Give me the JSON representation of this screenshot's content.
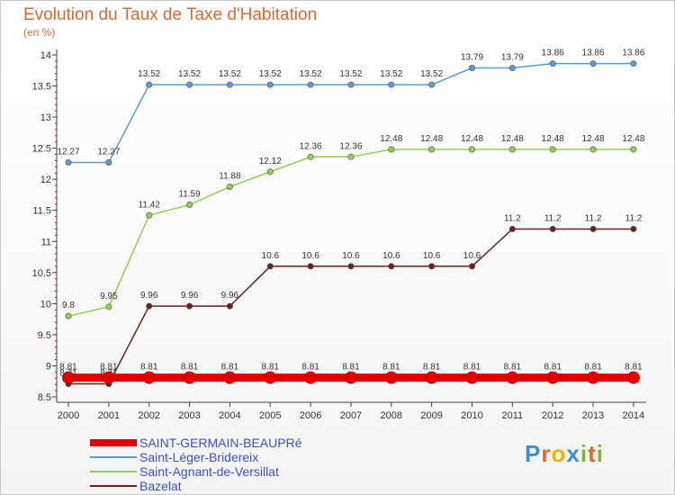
{
  "title": "Evolution du Taux de Taxe d'Habitation",
  "unit_label": "(en %)",
  "logo": {
    "letters": [
      {
        "t": "P",
        "color": "#3a8fd0"
      },
      {
        "t": "r",
        "color": "#e0662c"
      },
      {
        "t": "o",
        "color": "#f0b400"
      },
      {
        "t": "x",
        "color": "#3a8fd0"
      },
      {
        "t": "i",
        "color": "#7ab82e"
      },
      {
        "t": "t",
        "color": "#e0662c"
      },
      {
        "t": "i",
        "color": "#7ab82e"
      }
    ]
  },
  "chart_data": {
    "type": "line",
    "title": "Evolution du Taux de Taxe d'Habitation",
    "ylabel": "(en %)",
    "xlabel": "",
    "x": [
      "2000",
      "2001",
      "2002",
      "2003",
      "2004",
      "2005",
      "2006",
      "2007",
      "2008",
      "2009",
      "2010",
      "2011",
      "2012",
      "2013",
      "2014"
    ],
    "ylim": [
      8.5,
      14
    ],
    "yticks": [
      "8.5",
      "9",
      "9.5",
      "10",
      "10.5",
      "11",
      "11.5",
      "12",
      "12.5",
      "13",
      "13.5",
      "14"
    ],
    "grid": false,
    "legend_position": "bottom-left",
    "series": [
      {
        "name": "SAINT-GERMAIN-BEAUPRé",
        "color": "#e30000",
        "values": [
          8.81,
          8.81,
          8.81,
          8.81,
          8.81,
          8.81,
          8.81,
          8.81,
          8.81,
          8.81,
          8.81,
          8.81,
          8.81,
          8.81,
          8.81
        ],
        "labels": [
          "8.81",
          "8.81",
          "8.81",
          "8.81",
          "8.81",
          "8.81",
          "8.81",
          "8.81",
          "8.81",
          "8.81",
          "8.81",
          "8.81",
          "8.81",
          "8.81",
          "8.81"
        ]
      },
      {
        "name": "Saint-Léger-Bridereix",
        "color": "#5b9bd5",
        "values": [
          12.27,
          12.27,
          13.52,
          13.52,
          13.52,
          13.52,
          13.52,
          13.52,
          13.52,
          13.52,
          13.79,
          13.79,
          13.86,
          13.86,
          13.86
        ],
        "labels": [
          "12.27",
          "12.27",
          "13.52",
          "13.52",
          "13.52",
          "13.52",
          "13.52",
          "13.52",
          "13.52",
          "13.52",
          "13.79",
          "13.79",
          "13.86",
          "13.86",
          "13.86"
        ]
      },
      {
        "name": "Saint-Agnant-de-Versillat",
        "color": "#8fd14f",
        "values": [
          9.8,
          9.95,
          11.42,
          11.59,
          11.88,
          12.12,
          12.36,
          12.36,
          12.48,
          12.48,
          12.48,
          12.48,
          12.48,
          12.48,
          12.48
        ],
        "labels": [
          "9.8",
          "9.95",
          "11.42",
          "11.59",
          "11.88",
          "12.12",
          "12.36",
          "12.36",
          "12.48",
          "12.48",
          "12.48",
          "12.48",
          "12.48",
          "12.48",
          "12.48"
        ]
      },
      {
        "name": "Bazelat",
        "color": "#6b1f1f",
        "values": [
          8.71,
          8.71,
          9.96,
          9.96,
          9.96,
          10.6,
          10.6,
          10.6,
          10.6,
          10.6,
          10.6,
          11.2,
          11.2,
          11.2,
          11.2
        ],
        "labels": [
          "8.71",
          "8.71",
          "9.96",
          "9.96",
          "9.96",
          "10.6",
          "10.6",
          "10.6",
          "10.6",
          "10.6",
          "10.6",
          "11.2",
          "11.2",
          "11.2",
          "11.2"
        ]
      }
    ]
  }
}
